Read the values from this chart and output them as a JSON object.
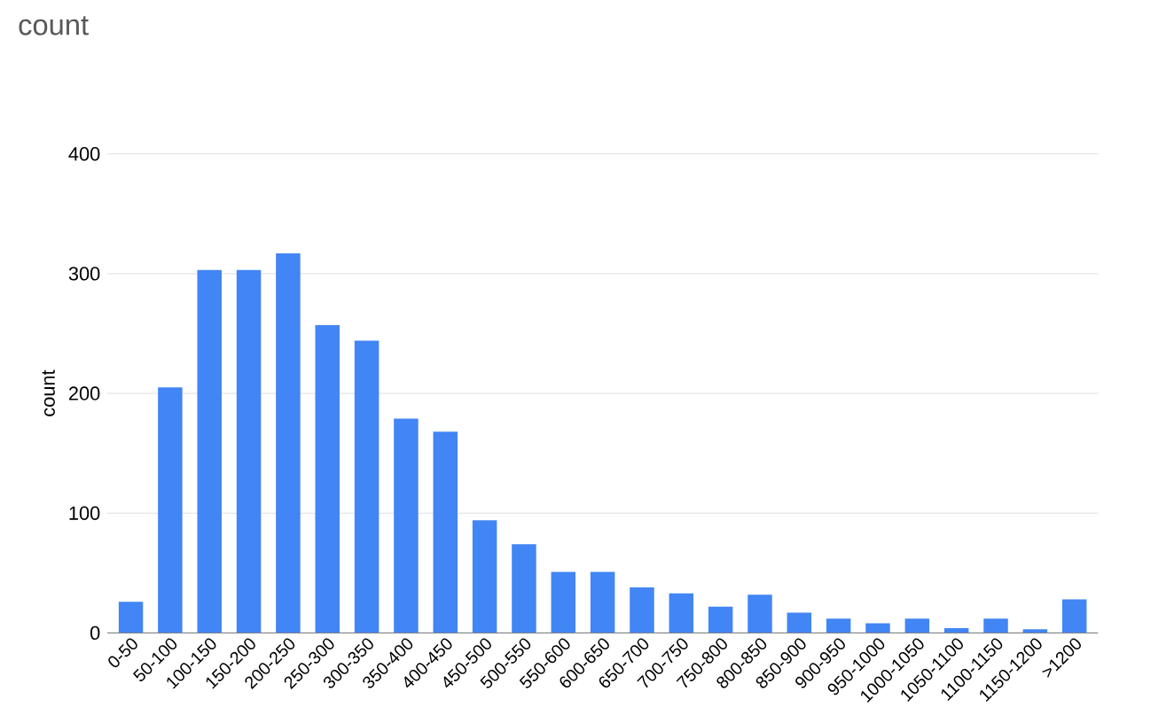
{
  "chart_data": {
    "type": "bar",
    "title": "count",
    "ylabel": "count",
    "categories": [
      "0-50",
      "50-100",
      "100-150",
      "150-200",
      "200-250",
      "250-300",
      "300-350",
      "350-400",
      "400-450",
      "450-500",
      "500-550",
      "550-600",
      "600-650",
      "650-700",
      "700-750",
      "750-800",
      "800-850",
      "850-900",
      "900-950",
      "950-1000",
      "1000-1050",
      "1050-1100",
      "1100-1150",
      "1150-1200",
      ">1200"
    ],
    "values": [
      26,
      205,
      303,
      303,
      317,
      257,
      244,
      179,
      168,
      94,
      74,
      51,
      51,
      38,
      33,
      22,
      32,
      17,
      12,
      8,
      12,
      4,
      12,
      3,
      28
    ],
    "color": "#4285f4",
    "ylim": [
      0,
      400
    ],
    "yticks": [
      0,
      100,
      200,
      300,
      400
    ],
    "grid": "y"
  }
}
